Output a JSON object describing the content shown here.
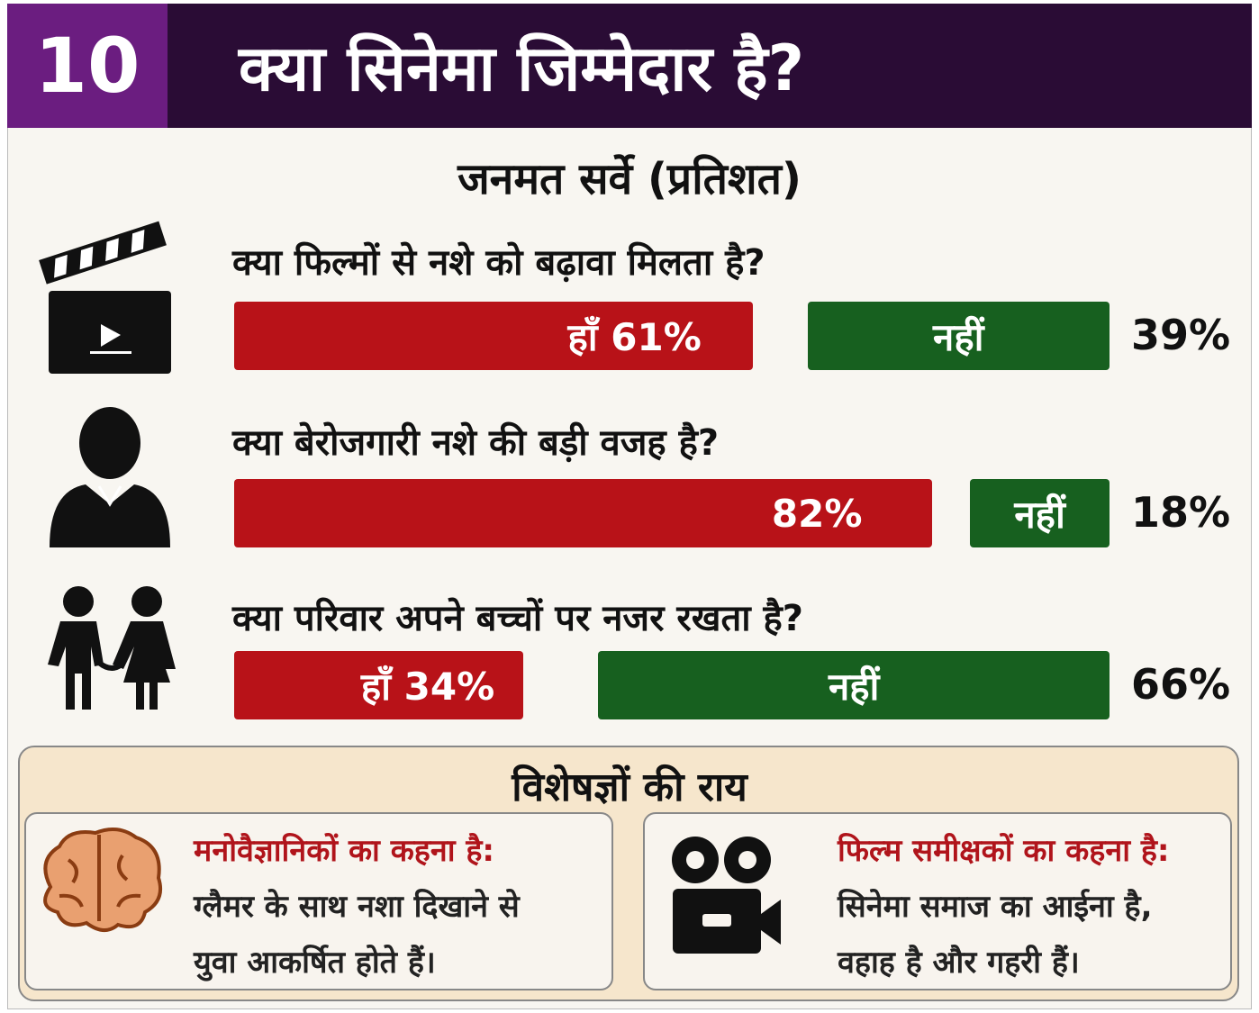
{
  "header": {
    "number": "10",
    "title": "क्या सिनेमा जिम्मेदार है?"
  },
  "survey": {
    "title": "जनमत सर्वे (प्रतिशत)",
    "questions": [
      {
        "question": "क्या फिल्मों से नशे को बढ़ावा मिलता है?",
        "yes_value": 61,
        "yes_label": "हाँ 61%",
        "no_label": "नहीं",
        "no_value": 39,
        "no_value_label": "39%"
      },
      {
        "question": "क्या बेरोजगारी नशे की बड़ी वजह है?",
        "yes_value": 82,
        "yes_label": "82%",
        "no_label": "नहीं",
        "no_value": 18,
        "no_value_label": "18%"
      },
      {
        "question": "क्या परिवार अपने बच्चों पर नजर रखता है?",
        "yes_value": 34,
        "yes_label": "हाँ 34%",
        "no_label": "नहीं",
        "no_value": 66,
        "no_value_label": "66%"
      }
    ]
  },
  "experts": {
    "title": "विशेषज्ञों की राय",
    "cards": [
      {
        "heading": "मनोवैज्ञानिकों का कहना है:",
        "lines": [
          "ग्लैमर के साथ नशा दिखाने से",
          "युवा आकर्षित होते हैं।"
        ]
      },
      {
        "heading": "फिल्म समीक्षकों का कहना है:",
        "lines": [
          "सिनेमा समाज का आईना है,",
          "वहाह है और गहरी हैं।"
        ]
      }
    ]
  }
}
